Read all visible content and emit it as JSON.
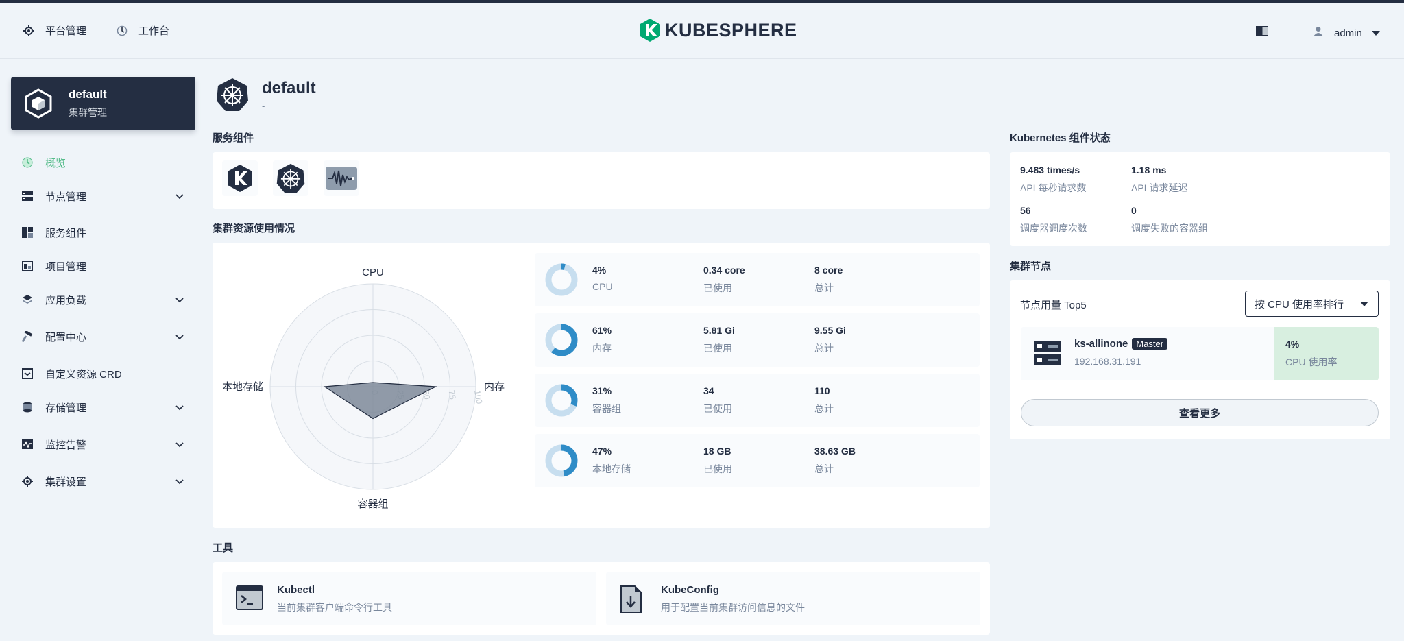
{
  "header": {
    "platform_label": "平台管理",
    "workbench_label": "工作台",
    "logo_text": "KUBESPHERE",
    "user": "admin"
  },
  "cluster": {
    "name": "default",
    "subtitle": "集群管理"
  },
  "sidebar": {
    "items": [
      {
        "label": "概览",
        "icon": "overview-icon",
        "active": true,
        "expandable": false
      },
      {
        "label": "节点管理",
        "icon": "nodes-icon",
        "expandable": true
      },
      {
        "label": "服务组件",
        "icon": "components-icon",
        "expandable": false
      },
      {
        "label": "项目管理",
        "icon": "projects-icon",
        "expandable": false
      },
      {
        "label": "应用负载",
        "icon": "workloads-icon",
        "expandable": true
      },
      {
        "label": "配置中心",
        "icon": "config-icon",
        "expandable": true
      },
      {
        "label": "自定义资源 CRD",
        "icon": "crd-icon",
        "expandable": false
      },
      {
        "label": "存储管理",
        "icon": "storage-icon",
        "expandable": true
      },
      {
        "label": "监控告警",
        "icon": "monitoring-icon",
        "expandable": true
      },
      {
        "label": "集群设置",
        "icon": "settings-icon",
        "expandable": true
      }
    ]
  },
  "page": {
    "title": "default",
    "description": "-"
  },
  "sections": {
    "services": "服务组件",
    "resources": "集群资源使用情况",
    "tools": "工具",
    "k8s_status": "Kubernetes 组件状态",
    "cluster_nodes": "集群节点"
  },
  "service_icons": [
    "kubesphere-icon",
    "kubernetes-icon",
    "monitoring-wave-icon"
  ],
  "radar": {
    "axes": [
      "CPU",
      "内存",
      "容器组",
      "本地存储"
    ],
    "ticks": [
      "0",
      "25",
      "50",
      "75",
      "100"
    ],
    "values": [
      4,
      61,
      31,
      47
    ]
  },
  "metrics": [
    {
      "percent": "4%",
      "name": "CPU",
      "used": "0.34 core",
      "used_label": "已使用",
      "total": "8 core",
      "total_label": "总计",
      "fraction": 0.04
    },
    {
      "percent": "61%",
      "name": "内存",
      "used": "5.81 Gi",
      "used_label": "已使用",
      "total": "9.55 Gi",
      "total_label": "总计",
      "fraction": 0.61
    },
    {
      "percent": "31%",
      "name": "容器组",
      "used": "34",
      "used_label": "已使用",
      "total": "110",
      "total_label": "总计",
      "fraction": 0.31
    },
    {
      "percent": "47%",
      "name": "本地存储",
      "used": "18 GB",
      "used_label": "已使用",
      "total": "38.63 GB",
      "total_label": "总计",
      "fraction": 0.47
    }
  ],
  "k8s": [
    {
      "value": "9.483 times/s",
      "label": "API 每秒请求数"
    },
    {
      "value": "1.18 ms",
      "label": "API 请求延迟"
    },
    {
      "value": "56",
      "label": "调度器调度次数"
    },
    {
      "value": "0",
      "label": "调度失败的容器组"
    }
  ],
  "nodes": {
    "top_label": "节点用量 Top5",
    "sort_label": "按 CPU 使用率排行",
    "node_name": "ks-allinone",
    "node_role": "Master",
    "node_ip": "192.168.31.191",
    "cpu_value": "4%",
    "cpu_label": "CPU 使用率",
    "more_label": "查看更多"
  },
  "tools": [
    {
      "title": "Kubectl",
      "desc": "当前集群客户端命令行工具",
      "icon": "terminal-icon"
    },
    {
      "title": "KubeConfig",
      "desc": "用于配置当前集群访问信息的文件",
      "icon": "file-download-icon"
    }
  ],
  "colors": {
    "accent": "#55bc8a",
    "dark": "#242e42",
    "ring": "#3385ff",
    "ring_bg": "#c7deef"
  }
}
